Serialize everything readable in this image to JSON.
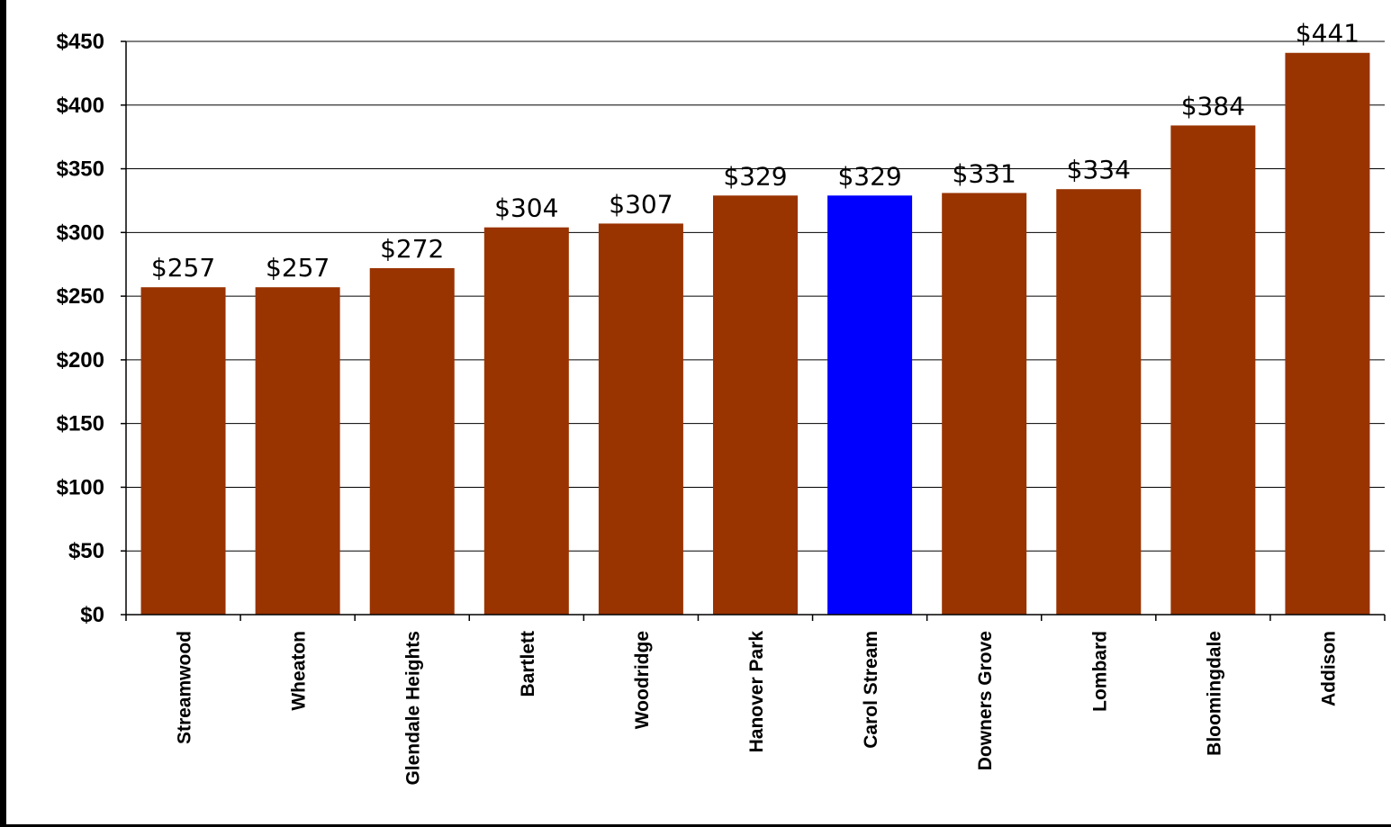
{
  "chart_data": {
    "type": "bar",
    "title": "",
    "xlabel": "",
    "ylabel": "",
    "categories": [
      "Streamwood",
      "Wheaton",
      "Glendale Heights",
      "Bartlett",
      "Woodridge",
      "Hanover Park",
      "Carol Stream",
      "Downers Grove",
      "Lombard",
      "Bloomingdale",
      "Addison"
    ],
    "values": [
      257,
      257,
      272,
      304,
      307,
      329,
      329,
      331,
      334,
      384,
      441
    ],
    "data_labels": [
      "$257",
      "$257",
      "$272",
      "$304",
      "$307",
      "$329",
      "$329",
      "$331",
      "$334",
      "$384",
      "$441"
    ],
    "ylim": [
      0,
      450
    ],
    "y_ticks": [
      0,
      50,
      100,
      150,
      200,
      250,
      300,
      350,
      400,
      450
    ],
    "y_tick_labels": [
      "$0",
      "$50",
      "$100",
      "$150",
      "$200",
      "$250",
      "$300",
      "$350",
      "$400",
      "$450"
    ],
    "grid": true,
    "legend": "none",
    "colors": {
      "default_bar": "#993300",
      "highlight_bar": "#0000FF",
      "gridline": "#000000"
    },
    "highlight_category": "Carol Stream"
  }
}
